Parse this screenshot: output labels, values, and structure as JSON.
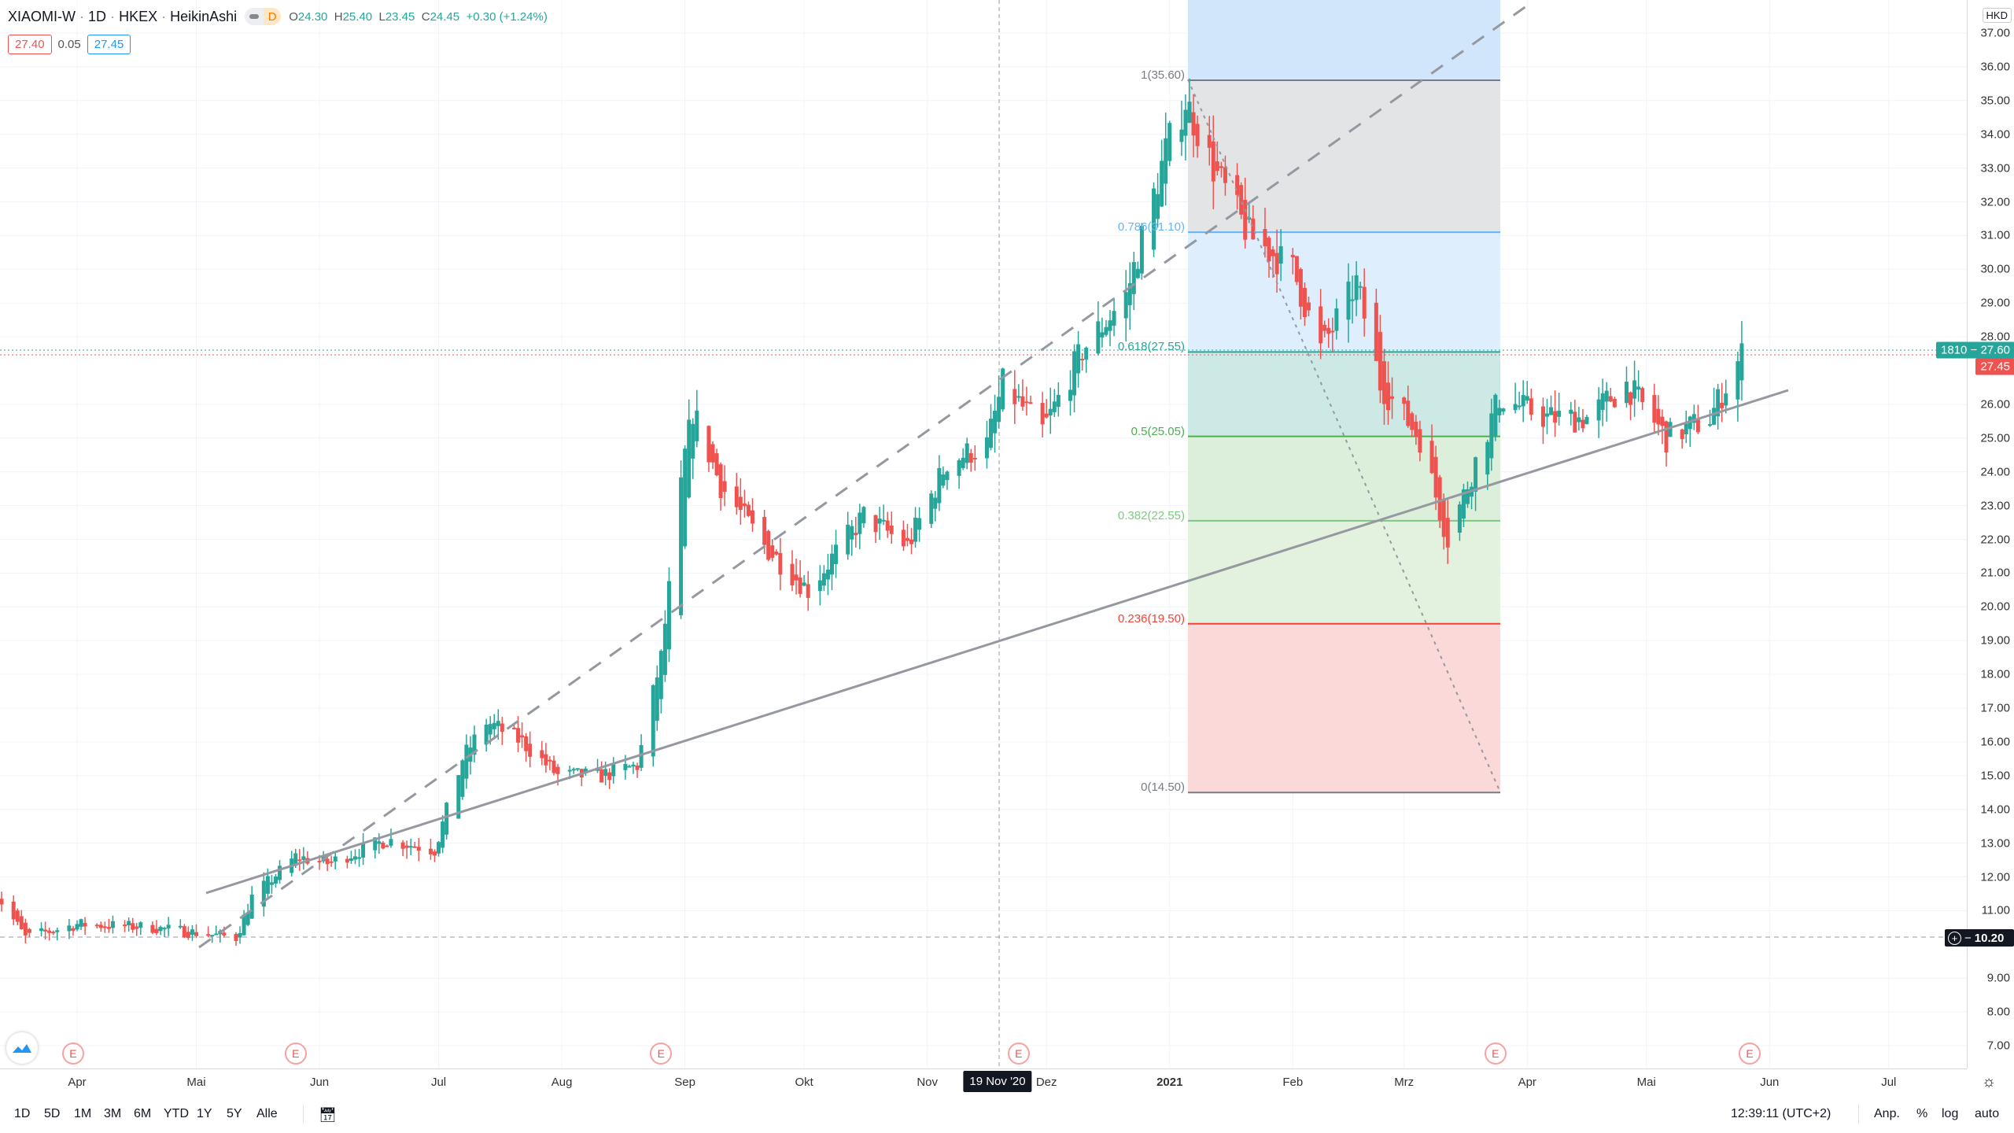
{
  "header": {
    "symbol": "XIAOMI-W",
    "interval": "1D",
    "exchange": "HKEX",
    "chart_type": "HeikinAshi",
    "sep": "·",
    "mode_badge": "D",
    "ohlc": {
      "o_label": "O",
      "o": "24.30",
      "h_label": "H",
      "h": "25.40",
      "l_label": "L",
      "l": "23.45",
      "c_label": "C",
      "c": "24.45",
      "change": "+0.30 (+1.24%)"
    },
    "bid": "27.40",
    "spread": "0.05",
    "ask": "27.45"
  },
  "price_axis": {
    "currency": "HKD",
    "ticks": [
      "37.00",
      "36.00",
      "35.00",
      "34.00",
      "33.00",
      "32.00",
      "31.00",
      "30.00",
      "29.00",
      "28.00",
      "26.00",
      "25.00",
      "24.00",
      "23.00",
      "22.00",
      "21.00",
      "20.00",
      "19.00",
      "18.00",
      "17.00",
      "16.00",
      "15.00",
      "14.00",
      "13.00",
      "12.00",
      "11.00",
      "9.00",
      "8.00",
      "7.00"
    ],
    "last_label": "1810 − 27.60",
    "ask_label": "27.45",
    "cross_label": "10.20",
    "colors": {
      "up": "#26a69a",
      "down": "#ef5350"
    }
  },
  "time_axis": {
    "ticks": [
      {
        "label": "Apr",
        "date": "2020-04-01"
      },
      {
        "label": "Mai",
        "date": "2020-05-01"
      },
      {
        "label": "Jun",
        "date": "2020-06-01"
      },
      {
        "label": "Jul",
        "date": "2020-07-01"
      },
      {
        "label": "Aug",
        "date": "2020-08-01"
      },
      {
        "label": "Sep",
        "date": "2020-09-01"
      },
      {
        "label": "Okt",
        "date": "2020-10-01"
      },
      {
        "label": "Nov",
        "date": "2020-11-01"
      },
      {
        "label": "Dez",
        "date": "2020-12-01"
      },
      {
        "label": "2021",
        "date": "2021-01-01",
        "bold": true
      },
      {
        "label": "Feb",
        "date": "2021-02-01"
      },
      {
        "label": "Mrz",
        "date": "2021-03-01"
      },
      {
        "label": "Apr",
        "date": "2021-04-01"
      },
      {
        "label": "Mai",
        "date": "2021-05-01"
      },
      {
        "label": "Jun",
        "date": "2021-06-01"
      },
      {
        "label": "Jul",
        "date": "2021-07-01"
      }
    ],
    "crosshair_label": "19 Nov '20"
  },
  "fib": {
    "levels": [
      {
        "label": "1(35.60)",
        "price": 35.6,
        "color": "#787b86"
      },
      {
        "label": "0.786(31.10)",
        "price": 31.1,
        "color": "#64b5f6"
      },
      {
        "label": "0.618(27.55)",
        "price": 27.55,
        "color": "#26a69a"
      },
      {
        "label": "0.5(25.05)",
        "price": 25.05,
        "color": "#4caf50"
      },
      {
        "label": "0.382(22.55)",
        "price": 22.55,
        "color": "#81c784"
      },
      {
        "label": "0.236(19.50)",
        "price": 19.5,
        "color": "#f44336"
      },
      {
        "label": "0(14.50)",
        "price": 14.5,
        "color": "#787b86"
      }
    ]
  },
  "earnings_marker": "E",
  "earnings_dates": [
    "2020-03-31",
    "2020-05-26",
    "2020-08-26",
    "2020-11-24",
    "2021-03-24",
    "2021-05-27"
  ],
  "chart_data": {
    "type": "candlestick",
    "title": "XIAOMI-W · 1D · HKEX · HeikinAshi",
    "ylabel": "HKD",
    "ylim": [
      6.5,
      38
    ],
    "price_path": [
      [
        "2020-03-11",
        11.6
      ],
      [
        "2020-03-19",
        10.2
      ],
      [
        "2020-04-01",
        10.6
      ],
      [
        "2020-04-20",
        10.5
      ],
      [
        "2020-05-04",
        10.3
      ],
      [
        "2020-05-11",
        10.2
      ],
      [
        "2020-05-15",
        11.4
      ],
      [
        "2020-05-26",
        12.6
      ],
      [
        "2020-06-03",
        12.4
      ],
      [
        "2020-06-18",
        13.1
      ],
      [
        "2020-06-30",
        12.8
      ],
      [
        "2020-07-07",
        15.5
      ],
      [
        "2020-07-13",
        16.6
      ],
      [
        "2020-07-22",
        16.0
      ],
      [
        "2020-07-31",
        15.0
      ],
      [
        "2020-08-11",
        15.0
      ],
      [
        "2020-08-20",
        15.3
      ],
      [
        "2020-08-26",
        18.5
      ],
      [
        "2020-09-01",
        24.5
      ],
      [
        "2020-09-03",
        25.8
      ],
      [
        "2020-09-10",
        23.6
      ],
      [
        "2020-09-21",
        21.8
      ],
      [
        "2020-10-02",
        20.5
      ],
      [
        "2020-10-16",
        22.7
      ],
      [
        "2020-10-27",
        21.8
      ],
      [
        "2020-11-06",
        24.3
      ],
      [
        "2020-11-16",
        24.8
      ],
      [
        "2020-11-20",
        26.6
      ],
      [
        "2020-11-30",
        25.2
      ],
      [
        "2020-12-10",
        27.6
      ],
      [
        "2020-12-21",
        29.2
      ],
      [
        "2020-12-31",
        33.5
      ],
      [
        "2021-01-05",
        35.0
      ],
      [
        "2021-01-12",
        33.0
      ],
      [
        "2021-01-21",
        31.0
      ],
      [
        "2021-02-01",
        30.0
      ],
      [
        "2021-02-08",
        27.6
      ],
      [
        "2021-02-17",
        29.6
      ],
      [
        "2021-02-23",
        26.6
      ],
      [
        "2021-03-05",
        25.0
      ],
      [
        "2021-03-12",
        22.0
      ],
      [
        "2021-03-19",
        24.3
      ],
      [
        "2021-03-25",
        26.2
      ],
      [
        "2021-04-06",
        25.6
      ],
      [
        "2021-04-16",
        25.6
      ],
      [
        "2021-04-26",
        26.6
      ],
      [
        "2021-05-06",
        25.0
      ],
      [
        "2021-05-17",
        25.6
      ],
      [
        "2021-05-25",
        27.5
      ]
    ],
    "last_close": 27.6
  },
  "bottom_toolbar": {
    "ranges": [
      "1D",
      "5D",
      "1M",
      "3M",
      "6M",
      "YTD",
      "1Y",
      "5Y",
      "Alle"
    ],
    "clock": "12:39:11 (UTC+2)",
    "adjust": "Anp.",
    "percent": "%",
    "log": "log",
    "auto": "auto"
  }
}
